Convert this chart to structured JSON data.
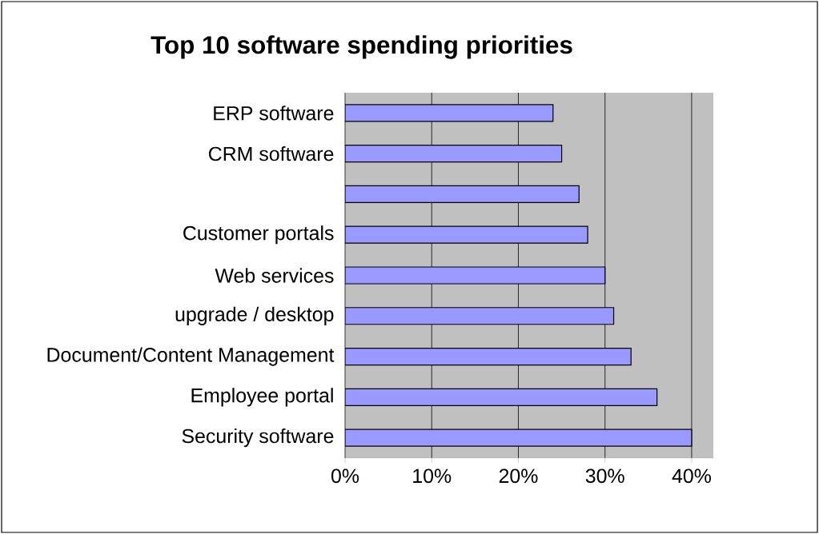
{
  "chart_data": {
    "type": "bar",
    "orientation": "horizontal",
    "title": "Top 10 software spending priorities",
    "categories": [
      "ERP software",
      "CRM software",
      null,
      "Customer portals",
      "Web services",
      "upgrade / desktop",
      "Document/Content Management",
      "Employee portal",
      "Security software"
    ],
    "values": [
      24,
      25,
      27,
      28,
      30,
      31,
      33,
      36,
      40
    ],
    "color": "#9999ff",
    "xlim": [
      0,
      42.5
    ],
    "xticks": [
      {
        "value": 0,
        "label": "0%"
      },
      {
        "value": 10,
        "label": "10%"
      },
      {
        "value": 20,
        "label": "20%"
      },
      {
        "value": 30,
        "label": "30%"
      },
      {
        "value": 40,
        "label": "40%"
      }
    ],
    "grid": "x"
  }
}
